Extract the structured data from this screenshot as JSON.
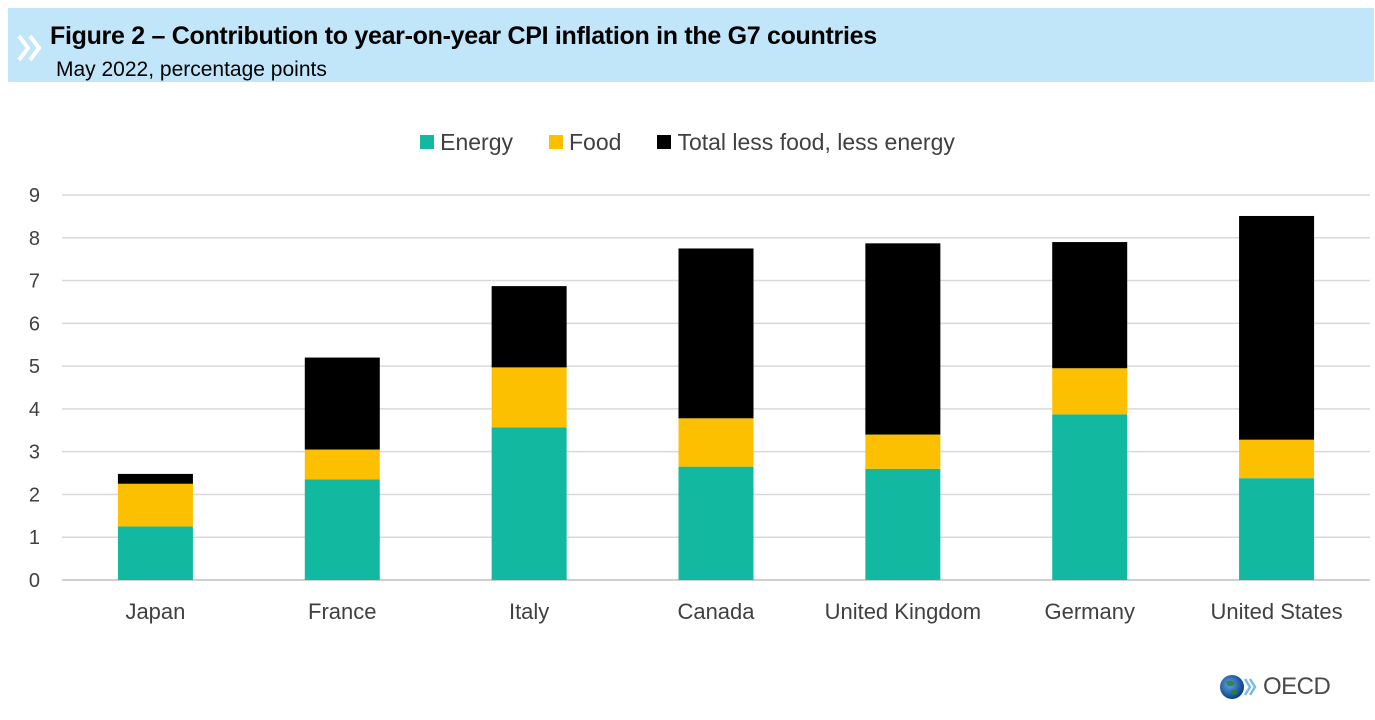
{
  "header": {
    "title": "Figure 2 – Contribution to year-on-year CPI inflation in the G7 countries",
    "subtitle": "May 2022, percentage points"
  },
  "logo": {
    "text": "OECD",
    "icon": "oecd-globe-icon"
  },
  "chart_data": {
    "type": "bar",
    "stacked": true,
    "title": "Figure 2 – Contribution to year-on-year CPI inflation in the G7 countries",
    "subtitle": "May 2022, percentage points",
    "xlabel": "",
    "ylabel": "",
    "ylim": [
      0,
      9
    ],
    "yticks": [
      0,
      1,
      2,
      3,
      4,
      5,
      6,
      7,
      8,
      9
    ],
    "grid": true,
    "legend_position": "top",
    "categories": [
      "Japan",
      "France",
      "Italy",
      "Canada",
      "United Kingdom",
      "Germany",
      "United States"
    ],
    "series": [
      {
        "name": "Energy",
        "color": "#12b9a0",
        "values": [
          1.25,
          2.35,
          3.57,
          2.65,
          2.6,
          3.87,
          2.38
        ]
      },
      {
        "name": "Food",
        "color": "#fdc000",
        "values": [
          1.0,
          0.7,
          1.4,
          1.13,
          0.8,
          1.08,
          0.9
        ]
      },
      {
        "name": "Total less food, less energy",
        "color": "#000000",
        "values": [
          0.23,
          2.15,
          1.9,
          3.97,
          4.47,
          2.95,
          5.23
        ]
      }
    ]
  }
}
